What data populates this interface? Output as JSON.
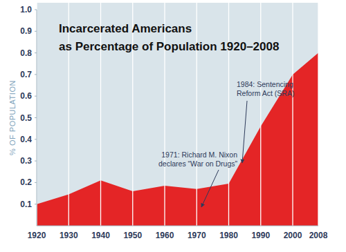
{
  "chart_data": {
    "type": "area",
    "title": [
      "Incarcerated Americans",
      "as Percentage of Population 1920–2008"
    ],
    "y_label": "% OF POPULATION",
    "x": [
      1920,
      1930,
      1940,
      1950,
      1960,
      1970,
      1980,
      1990,
      2000,
      2008
    ],
    "values": [
      0.1,
      0.145,
      0.21,
      0.16,
      0.185,
      0.17,
      0.195,
      0.46,
      0.7,
      0.8
    ],
    "color": "#e42526",
    "xlim": [
      1920,
      2008
    ],
    "xticks": [
      1920,
      1930,
      1940,
      1950,
      1960,
      1970,
      1980,
      1990,
      2000,
      2008
    ],
    "ylim": [
      0,
      1
    ],
    "yticks": [
      0.1,
      0.2,
      0.3,
      0.4,
      0.5,
      0.6,
      0.7,
      0.8,
      0.9,
      {
        "value": 1,
        "label": "1.0"
      }
    ],
    "grid": true,
    "annotations": [
      {
        "lines": [
          "1971: Richard M. Nixon",
          "declares “War on Drugs”"
        ]
      },
      {
        "lines": [
          "1984: Sentencing",
          "Reform Act (SRA)"
        ]
      }
    ]
  }
}
